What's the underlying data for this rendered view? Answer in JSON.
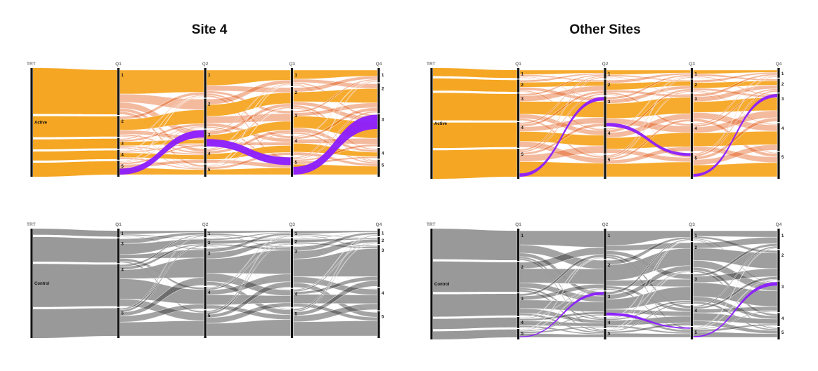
{
  "titles": {
    "left": "Site 4",
    "right": "Other Sites"
  },
  "colors": {
    "active": "#f5a623",
    "control": "#999999",
    "highlight": "#8b1cff",
    "cross": "#e04a00",
    "axis": "#111111"
  },
  "chart_data": [
    {
      "type": "parallel-sets",
      "title": "Site 4",
      "group": "Active",
      "axes": [
        "TRT",
        "Q1",
        "Q2",
        "Q3",
        "Q4"
      ],
      "levels": {
        "Q1": [
          "1",
          "2",
          "3",
          "4",
          "5"
        ],
        "Q2": [
          "1",
          "2",
          "3",
          "4",
          "5"
        ],
        "Q3": [
          "1",
          "2",
          "3",
          "4",
          "5"
        ],
        "Q4": [
          "1",
          "2",
          "3",
          "4",
          "5"
        ]
      },
      "trt_level": "Active",
      "level_shares": {
        "Q1": [
          0.46,
          0.21,
          0.1,
          0.09,
          0.14
        ],
        "Q2": [
          0.28,
          0.3,
          0.17,
          0.15,
          0.1
        ],
        "Q3": [
          0.16,
          0.22,
          0.24,
          0.2,
          0.18
        ],
        "Q4": [
          0.12,
          0.3,
          0.33,
          0.1,
          0.15
        ]
      },
      "highlight": "purple trajectory"
    },
    {
      "type": "parallel-sets",
      "title": "Other Sites",
      "group": "Active",
      "axes": [
        "TRT",
        "Q1",
        "Q2",
        "Q3",
        "Q4"
      ],
      "levels": {
        "Q1": [
          "1",
          "2",
          "3",
          "4",
          "5"
        ],
        "Q2": [
          "1",
          "2",
          "3",
          "4",
          "5"
        ],
        "Q3": [
          "1",
          "2",
          "3",
          "4",
          "5"
        ],
        "Q4": [
          "1",
          "2",
          "3",
          "4",
          "5"
        ]
      },
      "trt_level": "Active",
      "level_shares": {
        "Q1": [
          0.08,
          0.12,
          0.27,
          0.25,
          0.28
        ],
        "Q2": [
          0.08,
          0.15,
          0.3,
          0.25,
          0.22
        ],
        "Q3": [
          0.08,
          0.12,
          0.28,
          0.28,
          0.24
        ],
        "Q4": [
          0.07,
          0.13,
          0.28,
          0.27,
          0.25
        ]
      },
      "highlight": "purple trajectory"
    },
    {
      "type": "parallel-sets",
      "title": "Site 4",
      "group": "Control",
      "axes": [
        "TRT",
        "Q1",
        "Q2",
        "Q3",
        "Q4"
      ],
      "levels": {
        "Q1": [
          "1",
          "3",
          "4",
          "5"
        ],
        "Q2": [
          "1",
          "2",
          "3",
          "4",
          "5"
        ],
        "Q3": [
          "1",
          "2",
          "3",
          "4",
          "5"
        ],
        "Q4": [
          "1",
          "2",
          "3",
          "4",
          "5"
        ]
      },
      "trt_level": "Control",
      "level_shares": {
        "Q1": [
          0.06,
          0.24,
          0.42,
          0.28
        ],
        "Q2": [
          0.06,
          0.08,
          0.38,
          0.22,
          0.26
        ],
        "Q3": [
          0.06,
          0.06,
          0.42,
          0.18,
          0.28
        ],
        "Q4": [
          0.05,
          0.06,
          0.42,
          0.22,
          0.25
        ]
      },
      "highlight": ""
    },
    {
      "type": "parallel-sets",
      "title": "Other Sites",
      "group": "Control",
      "axes": [
        "TRT",
        "Q1",
        "Q2",
        "Q3",
        "Q4"
      ],
      "levels": {
        "Q1": [
          "1",
          "2",
          "3",
          "4",
          "5"
        ],
        "Q2": [
          "1",
          "2",
          "3",
          "4",
          "5"
        ],
        "Q3": [
          "1",
          "2",
          "3",
          "4",
          "5"
        ],
        "Q4": [
          "1",
          "2",
          "3",
          "4",
          "5"
        ]
      },
      "trt_level": "Control",
      "level_shares": {
        "Q1": [
          0.3,
          0.3,
          0.22,
          0.1,
          0.08
        ],
        "Q2": [
          0.28,
          0.3,
          0.24,
          0.1,
          0.08
        ],
        "Q3": [
          0.1,
          0.3,
          0.3,
          0.2,
          0.1
        ],
        "Q4": [
          0.18,
          0.3,
          0.3,
          0.12,
          0.1
        ]
      },
      "highlight": "purple trajectory"
    }
  ]
}
